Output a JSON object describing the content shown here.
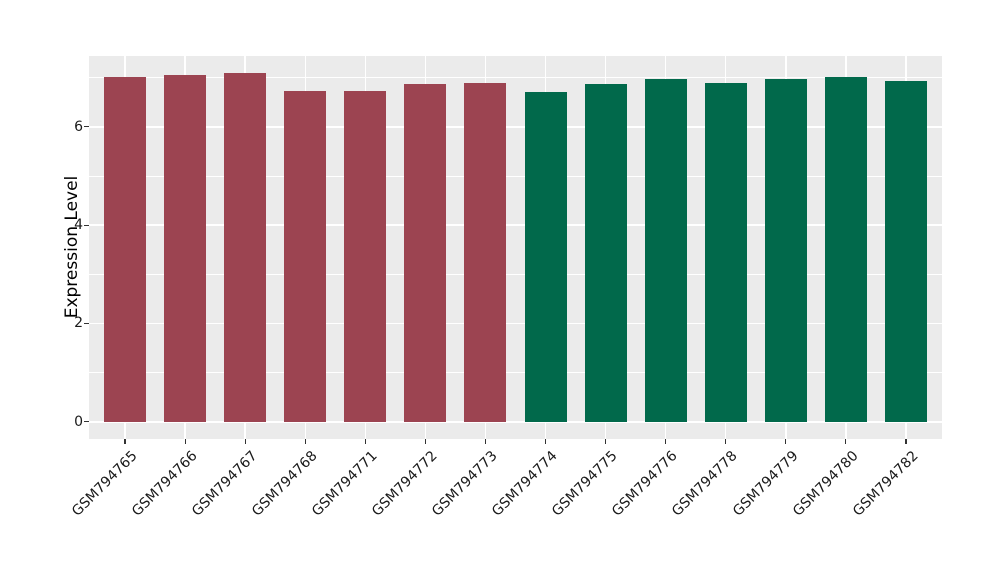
{
  "chart_data": {
    "type": "bar",
    "title": "",
    "xlabel": "",
    "ylabel": "Expression Level",
    "categories": [
      "GSM794765",
      "GSM794766",
      "GSM794767",
      "GSM794768",
      "GSM794771",
      "GSM794772",
      "GSM794773",
      "GSM794774",
      "GSM794775",
      "GSM794776",
      "GSM794778",
      "GSM794779",
      "GSM794780",
      "GSM794782"
    ],
    "values": [
      7.01,
      7.06,
      7.09,
      6.73,
      6.72,
      6.88,
      6.9,
      6.71,
      6.88,
      6.98,
      6.9,
      6.97,
      7.01,
      6.93
    ],
    "groups": [
      0,
      0,
      0,
      0,
      0,
      0,
      0,
      1,
      1,
      1,
      1,
      1,
      1,
      1
    ],
    "group_colors": [
      "#9C4451",
      "#01694B"
    ],
    "yticks": [
      0,
      2,
      4,
      6
    ],
    "y_minor": [
      1,
      3,
      5,
      7
    ],
    "ylim": [
      -0.35,
      7.44
    ],
    "bar_width_frac": 0.7,
    "panel_bg": "#EBEBEB",
    "grid_color": "#FFFFFF",
    "tick_color": "#333333",
    "legend": "none",
    "grid": "on"
  }
}
